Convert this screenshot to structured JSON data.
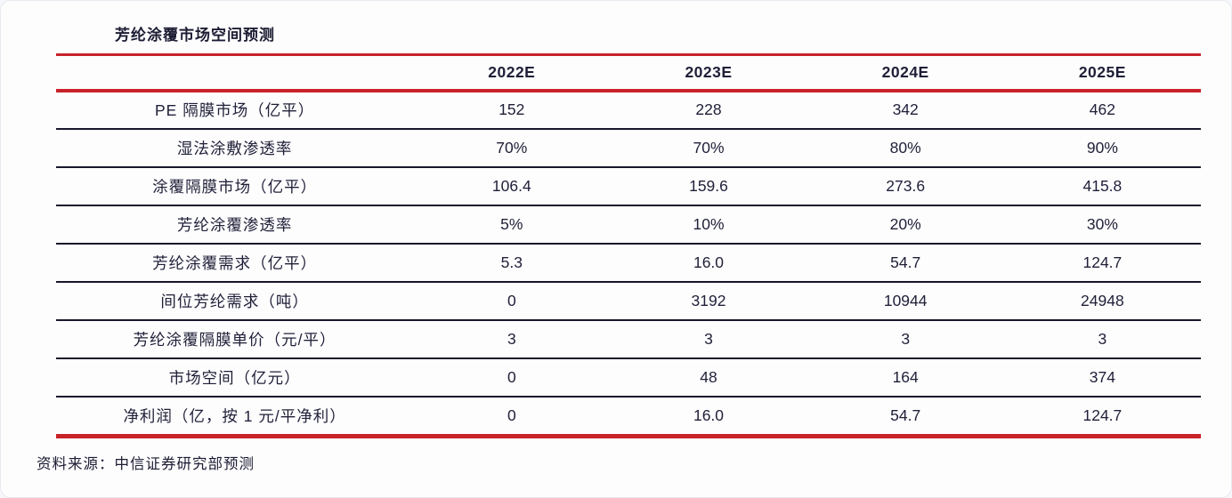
{
  "title": "芳纶涂覆市场空间预测",
  "source": "资料来源：中信证券研究部预测",
  "accent_color": "#c9232a",
  "rule_color": "#17172b",
  "table": {
    "corner_label": "",
    "columns": [
      "2022E",
      "2023E",
      "2024E",
      "2025E"
    ],
    "rows": [
      {
        "label": "PE 隔膜市场（亿平）",
        "values": [
          "152",
          "228",
          "342",
          "462"
        ]
      },
      {
        "label": "湿法涂敷渗透率",
        "values": [
          "70%",
          "70%",
          "80%",
          "90%"
        ]
      },
      {
        "label": "涂覆隔膜市场（亿平）",
        "values": [
          "106.4",
          "159.6",
          "273.6",
          "415.8"
        ]
      },
      {
        "label": "芳纶涂覆渗透率",
        "values": [
          "5%",
          "10%",
          "20%",
          "30%"
        ]
      },
      {
        "label": "芳纶涂覆需求（亿平）",
        "values": [
          "5.3",
          "16.0",
          "54.7",
          "124.7"
        ]
      },
      {
        "label": "间位芳纶需求（吨）",
        "values": [
          "0",
          "3192",
          "10944",
          "24948"
        ]
      },
      {
        "label": "芳纶涂覆隔膜单价（元/平）",
        "values": [
          "3",
          "3",
          "3",
          "3"
        ]
      },
      {
        "label": "市场空间（亿元）",
        "values": [
          "0",
          "48",
          "164",
          "374"
        ]
      },
      {
        "label": "净利润（亿，按 1 元/平净利）",
        "values": [
          "0",
          "16.0",
          "54.7",
          "124.7"
        ]
      }
    ]
  }
}
